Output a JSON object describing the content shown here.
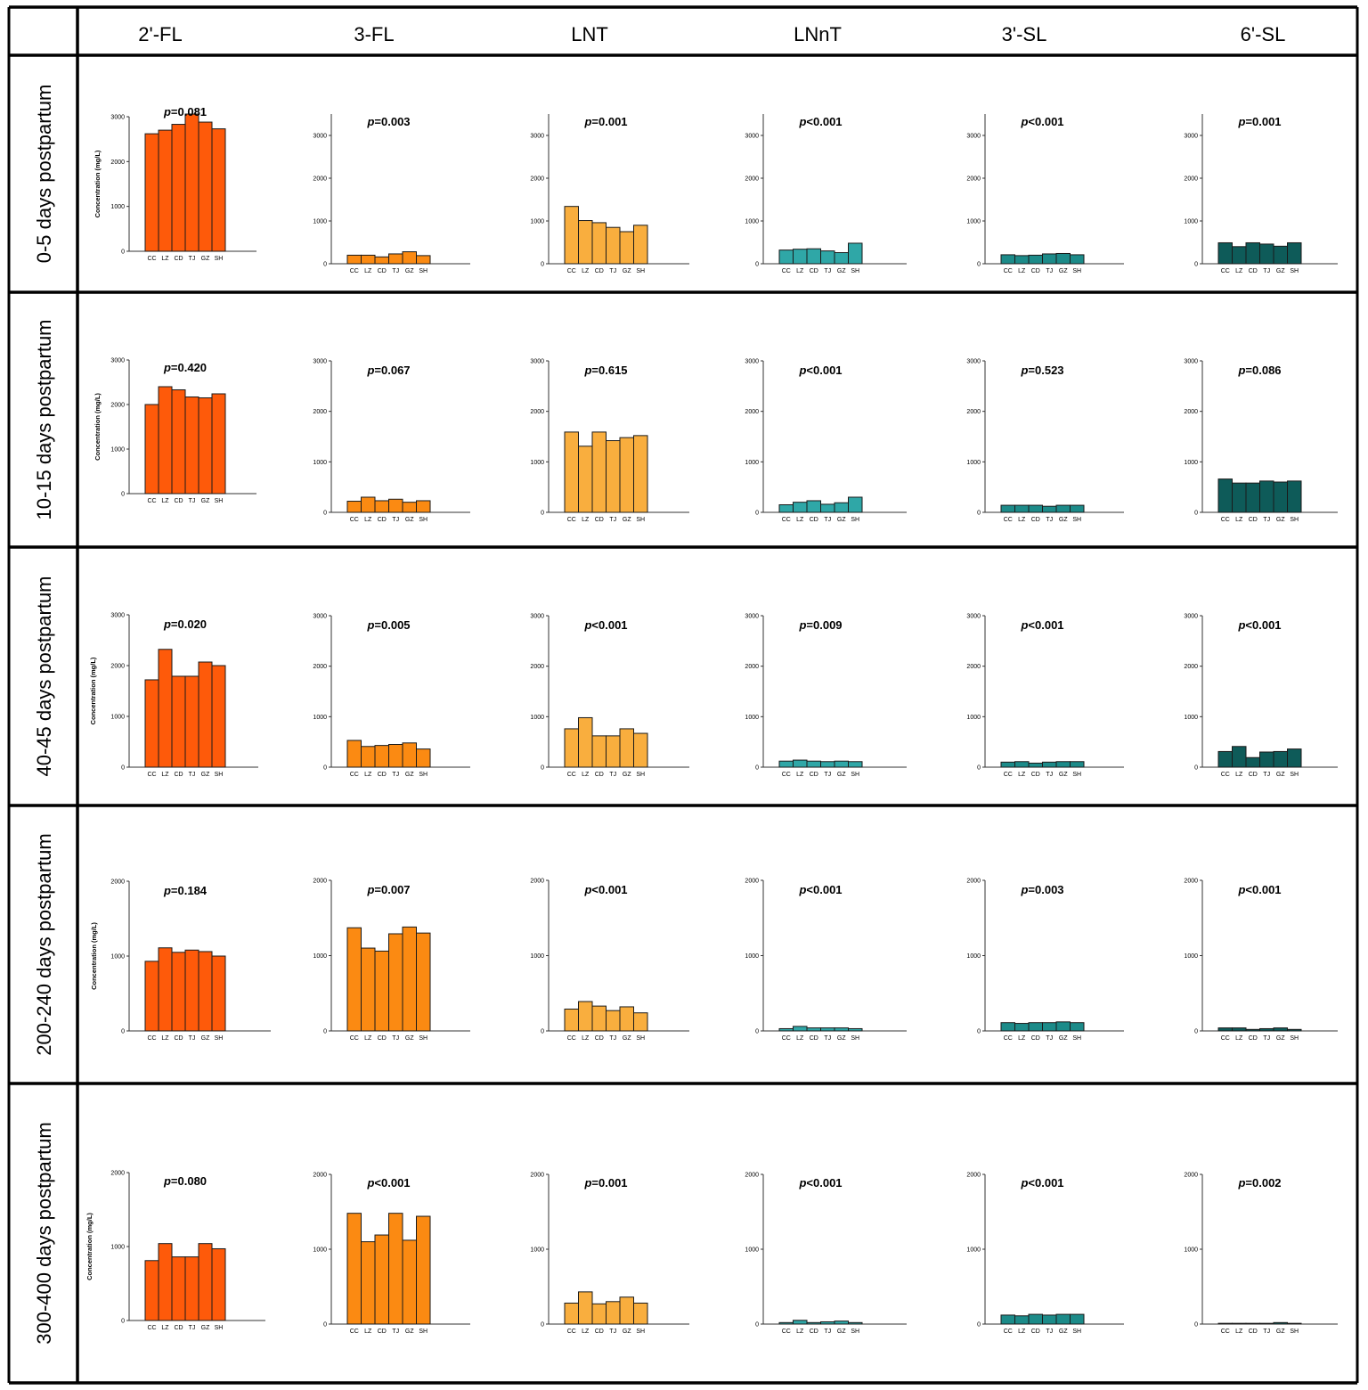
{
  "figure": {
    "columns": [
      "2'-FL",
      "3-FL",
      "LNT",
      "LNnT",
      "3'-SL",
      "6'-SL"
    ],
    "rows": [
      "0-5 days postpartum",
      "10-15 days postpartum",
      "40-45 days postpartum",
      "200-240 days postpartum",
      "300-400 days postpartum"
    ],
    "ylabel": "Concentration (mg/L)",
    "colors": {
      "2'-FL": "#fe5a0a",
      "3-FL": "#fb8a12",
      "LNT": "#f9ae3e",
      "LNnT": "#2fa7a7",
      "3'-SL": "#1c8b89",
      "6'-SL": "#0e5b59"
    }
  },
  "chart_data": [
    {
      "type": "bar",
      "row": "0-5 days postpartum",
      "column": "2'-FL",
      "p_label": "=0.081",
      "categories": [
        "CC",
        "LZ",
        "CD",
        "TJ",
        "GZ",
        "SH"
      ],
      "values": [
        2620,
        2700,
        2830,
        3060,
        2880,
        2730
      ],
      "ylim": [
        0,
        3000
      ],
      "yticks": [
        0,
        1000,
        2000,
        3000
      ],
      "ylabel": "Concentration (mg/L)"
    },
    {
      "type": "bar",
      "row": "0-5 days postpartum",
      "column": "3-FL",
      "p_label": "=0.003",
      "categories": [
        "CC",
        "LZ",
        "CD",
        "TJ",
        "GZ",
        "SH"
      ],
      "values": [
        200,
        200,
        160,
        230,
        280,
        190
      ],
      "ylim": [
        0,
        3500
      ],
      "yticks": [
        0,
        1000,
        2000,
        3000
      ]
    },
    {
      "type": "bar",
      "row": "0-5 days postpartum",
      "column": "LNT",
      "p_label": "=0.001",
      "categories": [
        "CC",
        "LZ",
        "CD",
        "TJ",
        "GZ",
        "SH"
      ],
      "values": [
        1340,
        1010,
        960,
        850,
        750,
        900
      ],
      "ylim": [
        0,
        3500
      ],
      "yticks": [
        0,
        1000,
        2000,
        3000
      ]
    },
    {
      "type": "bar",
      "row": "0-5 days postpartum",
      "column": "LNnT",
      "p_label": "<0.001",
      "categories": [
        "CC",
        "LZ",
        "CD",
        "TJ",
        "GZ",
        "SH"
      ],
      "values": [
        320,
        340,
        350,
        300,
        260,
        480
      ],
      "ylim": [
        0,
        3500
      ],
      "yticks": [
        0,
        1000,
        2000,
        3000
      ]
    },
    {
      "type": "bar",
      "row": "0-5 days postpartum",
      "column": "3'-SL",
      "p_label": "<0.001",
      "categories": [
        "CC",
        "LZ",
        "CD",
        "TJ",
        "GZ",
        "SH"
      ],
      "values": [
        210,
        190,
        200,
        230,
        240,
        210
      ],
      "ylim": [
        0,
        3500
      ],
      "yticks": [
        0,
        1000,
        2000,
        3000
      ]
    },
    {
      "type": "bar",
      "row": "0-5 days postpartum",
      "column": "6'-SL",
      "p_label": "=0.001",
      "categories": [
        "CC",
        "LZ",
        "CD",
        "TJ",
        "GZ",
        "SH"
      ],
      "values": [
        490,
        400,
        490,
        460,
        410,
        490
      ],
      "ylim": [
        0,
        3500
      ],
      "yticks": [
        0,
        1000,
        2000,
        3000
      ]
    },
    {
      "type": "bar",
      "row": "10-15 days postpartum",
      "column": "2'-FL",
      "p_label": "=0.420",
      "categories": [
        "CC",
        "LZ",
        "CD",
        "TJ",
        "GZ",
        "SH"
      ],
      "values": [
        2000,
        2400,
        2330,
        2170,
        2150,
        2240
      ],
      "ylim": [
        0,
        3000
      ],
      "yticks": [
        0,
        1000,
        2000,
        3000
      ],
      "ylabel": "Concentration (mg/L)"
    },
    {
      "type": "bar",
      "row": "10-15 days postpartum",
      "column": "3-FL",
      "p_label": "=0.067",
      "categories": [
        "CC",
        "LZ",
        "CD",
        "TJ",
        "GZ",
        "SH"
      ],
      "values": [
        220,
        300,
        230,
        260,
        200,
        230
      ],
      "ylim": [
        0,
        3000
      ],
      "yticks": [
        0,
        1000,
        2000,
        3000
      ]
    },
    {
      "type": "bar",
      "row": "10-15 days postpartum",
      "column": "LNT",
      "p_label": "=0.615",
      "categories": [
        "CC",
        "LZ",
        "CD",
        "TJ",
        "GZ",
        "SH"
      ],
      "values": [
        1590,
        1310,
        1590,
        1420,
        1480,
        1520
      ],
      "ylim": [
        0,
        3000
      ],
      "yticks": [
        0,
        1000,
        2000,
        3000
      ]
    },
    {
      "type": "bar",
      "row": "10-15 days postpartum",
      "column": "LNnT",
      "p_label": "<0.001",
      "categories": [
        "CC",
        "LZ",
        "CD",
        "TJ",
        "GZ",
        "SH"
      ],
      "values": [
        150,
        200,
        230,
        160,
        190,
        300
      ],
      "ylim": [
        0,
        3000
      ],
      "yticks": [
        0,
        1000,
        2000,
        3000
      ]
    },
    {
      "type": "bar",
      "row": "10-15 days postpartum",
      "column": "3'-SL",
      "p_label": "=0.523",
      "categories": [
        "CC",
        "LZ",
        "CD",
        "TJ",
        "GZ",
        "SH"
      ],
      "values": [
        140,
        140,
        140,
        120,
        140,
        140
      ],
      "ylim": [
        0,
        3000
      ],
      "yticks": [
        0,
        1000,
        2000,
        3000
      ]
    },
    {
      "type": "bar",
      "row": "10-15 days postpartum",
      "column": "6'-SL",
      "p_label": "=0.086",
      "categories": [
        "CC",
        "LZ",
        "CD",
        "TJ",
        "GZ",
        "SH"
      ],
      "values": [
        660,
        580,
        580,
        620,
        600,
        620
      ],
      "ylim": [
        0,
        3000
      ],
      "yticks": [
        0,
        1000,
        2000,
        3000
      ]
    },
    {
      "type": "bar",
      "row": "40-45 days postpartum",
      "column": "2'-FL",
      "p_label": "=0.020",
      "categories": [
        "CC",
        "LZ",
        "CD",
        "TJ",
        "GZ",
        "SH"
      ],
      "values": [
        1720,
        2320,
        1790,
        1790,
        2070,
        2000
      ],
      "ylim": [
        0,
        3000
      ],
      "yticks": [
        0,
        1000,
        2000,
        3000
      ],
      "ylabel": "Concentration (mg/L)"
    },
    {
      "type": "bar",
      "row": "40-45 days postpartum",
      "column": "3-FL",
      "p_label": "=0.005",
      "categories": [
        "CC",
        "LZ",
        "CD",
        "TJ",
        "GZ",
        "SH"
      ],
      "values": [
        530,
        410,
        430,
        450,
        480,
        360
      ],
      "ylim": [
        0,
        3000
      ],
      "yticks": [
        0,
        1000,
        2000,
        3000
      ]
    },
    {
      "type": "bar",
      "row": "40-45 days postpartum",
      "column": "LNT",
      "p_label": "<0.001",
      "categories": [
        "CC",
        "LZ",
        "CD",
        "TJ",
        "GZ",
        "SH"
      ],
      "values": [
        760,
        980,
        620,
        620,
        760,
        670
      ],
      "ylim": [
        0,
        3000
      ],
      "yticks": [
        0,
        1000,
        2000,
        3000
      ]
    },
    {
      "type": "bar",
      "row": "40-45 days postpartum",
      "column": "LNnT",
      "p_label": "=0.009",
      "categories": [
        "CC",
        "LZ",
        "CD",
        "TJ",
        "GZ",
        "SH"
      ],
      "values": [
        120,
        140,
        120,
        110,
        120,
        110
      ],
      "ylim": [
        0,
        3000
      ],
      "yticks": [
        0,
        1000,
        2000,
        3000
      ]
    },
    {
      "type": "bar",
      "row": "40-45 days postpartum",
      "column": "3'-SL",
      "p_label": "<0.001",
      "categories": [
        "CC",
        "LZ",
        "CD",
        "TJ",
        "GZ",
        "SH"
      ],
      "values": [
        100,
        110,
        80,
        100,
        110,
        110
      ],
      "ylim": [
        0,
        3000
      ],
      "yticks": [
        0,
        1000,
        2000,
        3000
      ]
    },
    {
      "type": "bar",
      "row": "40-45 days postpartum",
      "column": "6'-SL",
      "p_label": "<0.001",
      "categories": [
        "CC",
        "LZ",
        "CD",
        "TJ",
        "GZ",
        "SH"
      ],
      "values": [
        310,
        410,
        190,
        300,
        310,
        360
      ],
      "ylim": [
        0,
        3000
      ],
      "yticks": [
        0,
        1000,
        2000,
        3000
      ]
    },
    {
      "type": "bar",
      "row": "200-240 days postpartum",
      "column": "2'-FL",
      "p_label": "=0.184",
      "categories": [
        "CC",
        "LZ",
        "CD",
        "TJ",
        "GZ",
        "SH"
      ],
      "values": [
        930,
        1110,
        1050,
        1080,
        1060,
        1000
      ],
      "ylim": [
        0,
        2000
      ],
      "yticks": [
        0,
        1000,
        2000
      ],
      "ylabel": "Concentration (mg/L)"
    },
    {
      "type": "bar",
      "row": "200-240 days postpartum",
      "column": "3-FL",
      "p_label": "=0.007",
      "categories": [
        "CC",
        "LZ",
        "CD",
        "TJ",
        "GZ",
        "SH"
      ],
      "values": [
        1370,
        1100,
        1060,
        1290,
        1380,
        1300
      ],
      "ylim": [
        0,
        2000
      ],
      "yticks": [
        0,
        1000,
        2000
      ]
    },
    {
      "type": "bar",
      "row": "200-240 days postpartum",
      "column": "LNT",
      "p_label": "<0.001",
      "categories": [
        "CC",
        "LZ",
        "CD",
        "TJ",
        "GZ",
        "SH"
      ],
      "values": [
        290,
        390,
        330,
        270,
        320,
        240
      ],
      "ylim": [
        0,
        2000
      ],
      "yticks": [
        0,
        1000,
        2000
      ]
    },
    {
      "type": "bar",
      "row": "200-240 days postpartum",
      "column": "LNnT",
      "p_label": "<0.001",
      "categories": [
        "CC",
        "LZ",
        "CD",
        "TJ",
        "GZ",
        "SH"
      ],
      "values": [
        30,
        60,
        40,
        40,
        40,
        30
      ],
      "ylim": [
        0,
        2000
      ],
      "yticks": [
        0,
        1000,
        2000
      ]
    },
    {
      "type": "bar",
      "row": "200-240 days postpartum",
      "column": "3'-SL",
      "p_label": "=0.003",
      "categories": [
        "CC",
        "LZ",
        "CD",
        "TJ",
        "GZ",
        "SH"
      ],
      "values": [
        110,
        100,
        110,
        110,
        120,
        110
      ],
      "ylim": [
        0,
        2000
      ],
      "yticks": [
        0,
        1000,
        2000
      ]
    },
    {
      "type": "bar",
      "row": "200-240 days postpartum",
      "column": "6'-SL",
      "p_label": "<0.001",
      "categories": [
        "CC",
        "LZ",
        "CD",
        "TJ",
        "GZ",
        "SH"
      ],
      "values": [
        40,
        40,
        20,
        30,
        40,
        20
      ],
      "ylim": [
        0,
        2000
      ],
      "yticks": [
        0,
        1000,
        2000
      ]
    },
    {
      "type": "bar",
      "row": "300-400 days postpartum",
      "column": "2'-FL",
      "p_label": "=0.080",
      "categories": [
        "CC",
        "LZ",
        "CD",
        "TJ",
        "GZ",
        "SH"
      ],
      "values": [
        810,
        1040,
        860,
        860,
        1040,
        970
      ],
      "ylim": [
        0,
        2000
      ],
      "yticks": [
        0,
        1000,
        2000
      ],
      "ylabel": "Concentration (mg/L)"
    },
    {
      "type": "bar",
      "row": "300-400 days postpartum",
      "column": "3-FL",
      "p_label": "<0.001",
      "categories": [
        "CC",
        "LZ",
        "CD",
        "TJ",
        "GZ",
        "SH"
      ],
      "values": [
        1480,
        1100,
        1190,
        1480,
        1120,
        1440
      ],
      "ylim": [
        0,
        2000
      ],
      "yticks": [
        0,
        1000,
        2000
      ]
    },
    {
      "type": "bar",
      "row": "300-400 days postpartum",
      "column": "LNT",
      "p_label": "=0.001",
      "categories": [
        "CC",
        "LZ",
        "CD",
        "TJ",
        "GZ",
        "SH"
      ],
      "values": [
        280,
        430,
        270,
        300,
        360,
        280
      ],
      "ylim": [
        0,
        2000
      ],
      "yticks": [
        0,
        1000,
        2000
      ]
    },
    {
      "type": "bar",
      "row": "300-400 days postpartum",
      "column": "LNnT",
      "p_label": "<0.001",
      "categories": [
        "CC",
        "LZ",
        "CD",
        "TJ",
        "GZ",
        "SH"
      ],
      "values": [
        20,
        50,
        20,
        30,
        40,
        20
      ],
      "ylim": [
        0,
        2000
      ],
      "yticks": [
        0,
        1000,
        2000
      ]
    },
    {
      "type": "bar",
      "row": "300-400 days postpartum",
      "column": "3'-SL",
      "p_label": "<0.001",
      "categories": [
        "CC",
        "LZ",
        "CD",
        "TJ",
        "GZ",
        "SH"
      ],
      "values": [
        120,
        110,
        130,
        120,
        130,
        130
      ],
      "ylim": [
        0,
        2000
      ],
      "yticks": [
        0,
        1000,
        2000
      ]
    },
    {
      "type": "bar",
      "row": "300-400 days postpartum",
      "column": "6'-SL",
      "p_label": "=0.002",
      "categories": [
        "CC",
        "LZ",
        "CD",
        "TJ",
        "GZ",
        "SH"
      ],
      "values": [
        10,
        10,
        10,
        10,
        20,
        10
      ],
      "ylim": [
        0,
        2000
      ],
      "yticks": [
        0,
        1000,
        2000
      ]
    }
  ]
}
